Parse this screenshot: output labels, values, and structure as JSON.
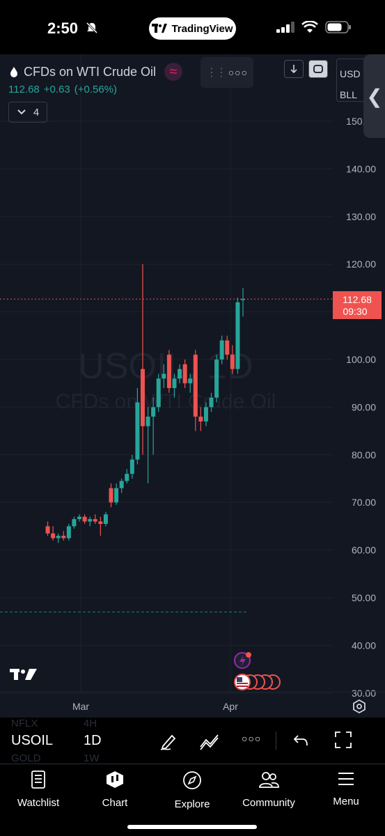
{
  "status_bar": {
    "time": "2:50",
    "app_pill": "TradingView"
  },
  "header": {
    "symbol_title": "CFDs on WTI Crude Oil",
    "last_price": "112.68",
    "change": "+0.63",
    "change_pct": "(+0.56%)",
    "indicator_count": "4",
    "currency": "USD",
    "unit": "BLL"
  },
  "chart_data": {
    "type": "candlestick",
    "watermark_symbol": "USOIL, 1D",
    "watermark_name": "CFDs on WTI Crude Oil",
    "y_ticks": [
      "150.00",
      "140.00",
      "130.00",
      "120.00",
      "100.00",
      "90.00",
      "80.00",
      "70.00",
      "60.00",
      "50.00",
      "40.00",
      "30.00"
    ],
    "ylim": [
      30,
      150
    ],
    "x_ticks": [
      "Mar",
      "Apr"
    ],
    "last_price_label": "112.68",
    "countdown": "09:30",
    "reference_line": 47,
    "candles": [
      {
        "o": 65,
        "h": 66,
        "l": 63,
        "c": 63.5
      },
      {
        "o": 63.5,
        "h": 65,
        "l": 62,
        "c": 62.5
      },
      {
        "o": 62.5,
        "h": 63.5,
        "l": 61.5,
        "c": 63
      },
      {
        "o": 63,
        "h": 64,
        "l": 62,
        "c": 62.5
      },
      {
        "o": 62.5,
        "h": 65.5,
        "l": 62,
        "c": 65
      },
      {
        "o": 65,
        "h": 67,
        "l": 64.5,
        "c": 66.5
      },
      {
        "o": 66.5,
        "h": 67.5,
        "l": 66,
        "c": 67
      },
      {
        "o": 67,
        "h": 67.5,
        "l": 65.5,
        "c": 66
      },
      {
        "o": 66,
        "h": 67,
        "l": 65,
        "c": 66.5
      },
      {
        "o": 66.5,
        "h": 67.5,
        "l": 65.5,
        "c": 66
      },
      {
        "o": 66,
        "h": 67,
        "l": 63,
        "c": 65.5
      },
      {
        "o": 65.5,
        "h": 68,
        "l": 65,
        "c": 67.5
      },
      {
        "o": 73,
        "h": 74,
        "l": 69,
        "c": 70
      },
      {
        "o": 70,
        "h": 74,
        "l": 69.5,
        "c": 73
      },
      {
        "o": 73,
        "h": 75,
        "l": 72,
        "c": 74.5
      },
      {
        "o": 74.5,
        "h": 77,
        "l": 74,
        "c": 76
      },
      {
        "o": 76,
        "h": 80,
        "l": 75,
        "c": 79
      },
      {
        "o": 79,
        "h": 94,
        "l": 78,
        "c": 91
      },
      {
        "o": 98,
        "h": 120,
        "l": 80,
        "c": 86
      },
      {
        "o": 86,
        "h": 90,
        "l": 74,
        "c": 88
      },
      {
        "o": 88,
        "h": 92,
        "l": 80,
        "c": 90
      },
      {
        "o": 90,
        "h": 97,
        "l": 89,
        "c": 96
      },
      {
        "o": 96,
        "h": 99,
        "l": 94,
        "c": 97
      },
      {
        "o": 101,
        "h": 102,
        "l": 93,
        "c": 94
      },
      {
        "o": 94,
        "h": 97,
        "l": 92,
        "c": 96
      },
      {
        "o": 96,
        "h": 99,
        "l": 95,
        "c": 98
      },
      {
        "o": 99,
        "h": 100,
        "l": 94,
        "c": 95
      },
      {
        "o": 95,
        "h": 97,
        "l": 93,
        "c": 96
      },
      {
        "o": 101,
        "h": 102,
        "l": 85,
        "c": 88
      },
      {
        "o": 88,
        "h": 90,
        "l": 85,
        "c": 87
      },
      {
        "o": 87,
        "h": 91,
        "l": 86,
        "c": 90
      },
      {
        "o": 90,
        "h": 93,
        "l": 89,
        "c": 92
      },
      {
        "o": 92,
        "h": 101,
        "l": 91,
        "c": 100
      },
      {
        "o": 100,
        "h": 105,
        "l": 99,
        "c": 104
      },
      {
        "o": 104,
        "h": 105,
        "l": 100,
        "c": 101
      },
      {
        "o": 101,
        "h": 103,
        "l": 97,
        "c": 98
      },
      {
        "o": 98,
        "h": 113,
        "l": 97,
        "c": 112
      },
      {
        "o": 112.5,
        "h": 115,
        "l": 109,
        "c": 112.68
      }
    ]
  },
  "toolbar": {
    "symbol": "USOIL",
    "symbol_prev": "NFLX",
    "symbol_next": "GOLD",
    "interval": "1D",
    "interval_prev": "4H",
    "interval_next": "1W"
  },
  "tabs": [
    {
      "label": "Watchlist"
    },
    {
      "label": "Chart"
    },
    {
      "label": "Explore"
    },
    {
      "label": "Community"
    },
    {
      "label": "Menu"
    }
  ],
  "colors": {
    "up": "#26a69a",
    "down": "#ef5350",
    "bg": "#131722",
    "grid": "#1e222d"
  }
}
